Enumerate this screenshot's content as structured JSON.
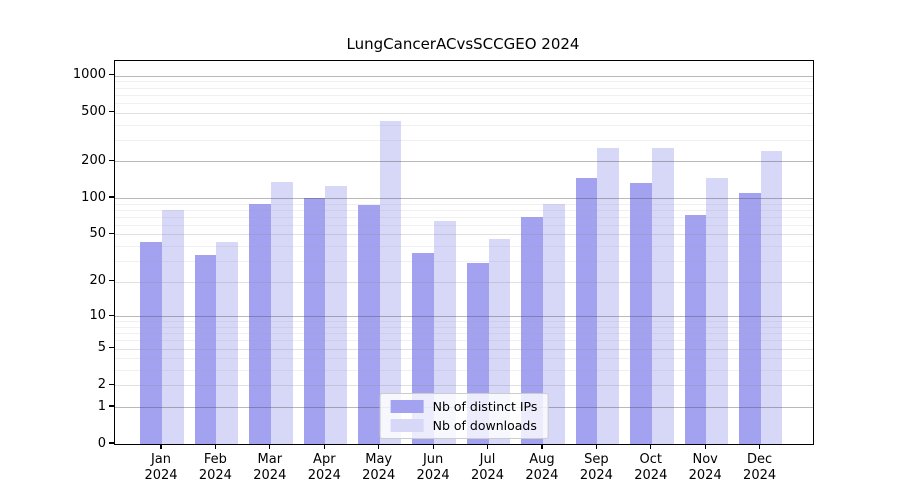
{
  "chart_data": {
    "type": "bar",
    "title": "LungCancerACvsSCCGEO 2024",
    "categories": [
      "Jan 2024",
      "Feb 2024",
      "Mar 2024",
      "Apr 2024",
      "May 2024",
      "Jun 2024",
      "Jul 2024",
      "Aug 2024",
      "Sep 2024",
      "Oct 2024",
      "Nov 2024",
      "Dec 2024"
    ],
    "series": [
      {
        "name": "Nb of distinct IPs",
        "key": "distinct-ips",
        "color": "#a2a2f0",
        "values": [
          43,
          34,
          89,
          100,
          88,
          35,
          29,
          70,
          147,
          132,
          72,
          110
        ]
      },
      {
        "name": "Nb of downloads",
        "key": "downloads",
        "color": "#d7d7f7",
        "values": [
          79,
          43,
          135,
          126,
          425,
          65,
          46,
          89,
          255,
          255,
          147,
          243
        ]
      }
    ],
    "xlabel": "",
    "ylabel": "",
    "yscale": "log1p",
    "ylim": [
      0,
      1320
    ],
    "yticks": [
      0,
      1,
      2,
      5,
      10,
      20,
      50,
      100,
      200,
      500,
      1000
    ],
    "yticks_emphasized": [
      1,
      10,
      100,
      200,
      1000
    ],
    "yminor": [
      3,
      4,
      6,
      7,
      8,
      9,
      30,
      40,
      60,
      70,
      80,
      90,
      300,
      400,
      600,
      700,
      800,
      900
    ],
    "grid": true,
    "legend_position": "lower center"
  }
}
